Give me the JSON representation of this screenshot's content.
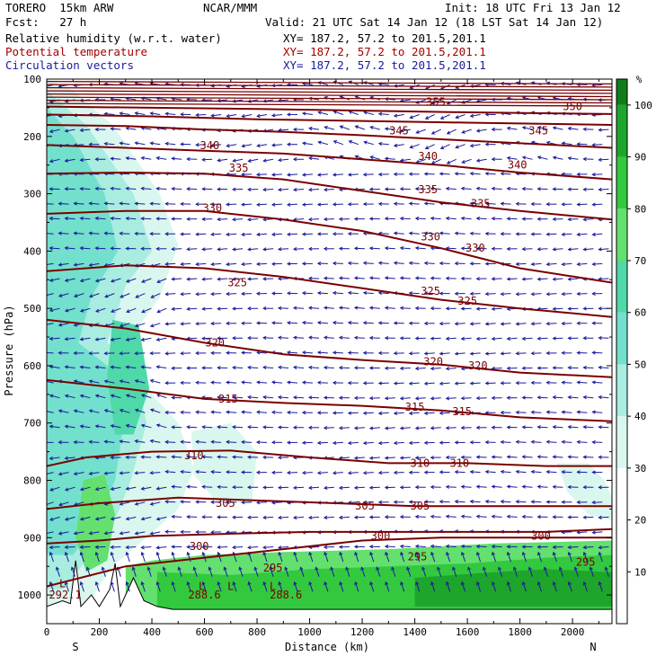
{
  "header": {
    "model": "TORERO  15km ARW",
    "center": "NCAR/MMM",
    "init": "Init: 18 UTC Fri 13 Jan 12",
    "fcst": "Fcst:   27 h",
    "valid": "Valid: 21 UTC Sat 14 Jan 12 (18 LST Sat 14 Jan 12)",
    "fields": [
      {
        "name": "Relative humidity (w.r.t. water)",
        "xy": "XY= 187.2, 57.2 to 201.5,201.1"
      },
      {
        "name": "Potential temperature",
        "xy": "XY= 187.2, 57.2 to 201.5,201.1"
      },
      {
        "name": "Circulation vectors",
        "xy": "XY= 187.2, 57.2 to 201.5,201.1"
      }
    ]
  },
  "colors": {
    "theta": "#7a0000",
    "vectors": "#1a1a9c",
    "rh_scale": [
      "#ffffff",
      "#ffffff",
      "#ffffff",
      "#d9f7ee",
      "#a8ede0",
      "#72e0cc",
      "#4fd9a8",
      "#63e06e",
      "#33c93f",
      "#1ea52c",
      "#107c1a"
    ]
  },
  "chart_data": {
    "type": "cross-section",
    "xlabel": "Distance (km)",
    "ylabel": "Pressure (hPa)",
    "xlim": [
      0,
      2150
    ],
    "ylim": [
      1050,
      100
    ],
    "x_ticks": [
      "0",
      "200",
      "400",
      "600",
      "800",
      "1000",
      "1200",
      "1400",
      "1600",
      "1800",
      "2000"
    ],
    "y_ticks": [
      "100",
      "200",
      "300",
      "400",
      "500",
      "600",
      "700",
      "800",
      "900",
      "1000"
    ],
    "x_end_labels": {
      "left": "S",
      "right": "N"
    },
    "colorbar": {
      "unit": "%",
      "ticks": [
        "10",
        "20",
        "30",
        "40",
        "50",
        "60",
        "70",
        "80",
        "90",
        "100"
      ],
      "range": [
        0,
        105
      ]
    },
    "theta_contours": [
      {
        "label": "295",
        "points": [
          [
            0,
            985
          ],
          [
            300,
            950
          ],
          [
            600,
            935
          ],
          [
            900,
            920
          ],
          [
            1200,
            905
          ],
          [
            1500,
            900
          ],
          [
            1800,
            900
          ],
          [
            2150,
            900
          ]
        ]
      },
      {
        "label": "300",
        "points": [
          [
            0,
            910
          ],
          [
            200,
            905
          ],
          [
            400,
            897
          ],
          [
            700,
            893
          ],
          [
            1000,
            890
          ],
          [
            1300,
            890
          ],
          [
            1600,
            890
          ],
          [
            1900,
            890
          ],
          [
            2150,
            885
          ]
        ]
      },
      {
        "label": "305",
        "points": [
          [
            0,
            850
          ],
          [
            200,
            840
          ],
          [
            500,
            830
          ],
          [
            800,
            835
          ],
          [
            1100,
            840
          ],
          [
            1400,
            845
          ],
          [
            1700,
            845
          ],
          [
            2000,
            845
          ],
          [
            2150,
            845
          ]
        ]
      },
      {
        "label": "310",
        "points": [
          [
            0,
            775
          ],
          [
            150,
            760
          ],
          [
            400,
            750
          ],
          [
            700,
            748
          ],
          [
            1000,
            760
          ],
          [
            1300,
            770
          ],
          [
            1600,
            770
          ],
          [
            1900,
            775
          ],
          [
            2150,
            775
          ]
        ]
      },
      {
        "label": "315",
        "points": [
          [
            0,
            625
          ],
          [
            300,
            640
          ],
          [
            600,
            658
          ],
          [
            900,
            665
          ],
          [
            1200,
            670
          ],
          [
            1500,
            678
          ],
          [
            1800,
            690
          ],
          [
            2150,
            697
          ]
        ]
      },
      {
        "label": "320",
        "points": [
          [
            0,
            520
          ],
          [
            300,
            535
          ],
          [
            600,
            560
          ],
          [
            900,
            580
          ],
          [
            1200,
            590
          ],
          [
            1500,
            598
          ],
          [
            1800,
            612
          ],
          [
            2150,
            620
          ]
        ]
      },
      {
        "label": "325",
        "points": [
          [
            0,
            435
          ],
          [
            300,
            425
          ],
          [
            600,
            430
          ],
          [
            900,
            445
          ],
          [
            1200,
            465
          ],
          [
            1500,
            485
          ],
          [
            1800,
            500
          ],
          [
            2150,
            515
          ]
        ]
      },
      {
        "label": "330",
        "points": [
          [
            0,
            335
          ],
          [
            300,
            330
          ],
          [
            600,
            330
          ],
          [
            900,
            345
          ],
          [
            1200,
            365
          ],
          [
            1500,
            395
          ],
          [
            1800,
            430
          ],
          [
            2150,
            455
          ]
        ]
      },
      {
        "label": "335",
        "points": [
          [
            0,
            265
          ],
          [
            300,
            263
          ],
          [
            600,
            265
          ],
          [
            900,
            275
          ],
          [
            1200,
            295
          ],
          [
            1500,
            315
          ],
          [
            1800,
            330
          ],
          [
            2150,
            345
          ]
        ]
      },
      {
        "label": "340",
        "points": [
          [
            0,
            215
          ],
          [
            300,
            220
          ],
          [
            600,
            225
          ],
          [
            900,
            230
          ],
          [
            1200,
            240
          ],
          [
            1500,
            250
          ],
          [
            1800,
            263
          ],
          [
            2150,
            275
          ]
        ]
      },
      {
        "label": "345",
        "points": [
          [
            0,
            180
          ],
          [
            300,
            182
          ],
          [
            600,
            188
          ],
          [
            900,
            192
          ],
          [
            1200,
            198
          ],
          [
            1500,
            205
          ],
          [
            1800,
            212
          ],
          [
            2150,
            220
          ]
        ]
      },
      {
        "label": "350",
        "points": [
          [
            0,
            162
          ],
          [
            400,
            165
          ],
          [
            800,
            170
          ],
          [
            1200,
            173
          ],
          [
            1600,
            176
          ],
          [
            2150,
            180
          ]
        ]
      },
      {
        "label": "355",
        "points": [
          [
            0,
            148
          ],
          [
            400,
            150
          ],
          [
            800,
            152
          ],
          [
            1200,
            155
          ],
          [
            1600,
            158
          ],
          [
            2150,
            161
          ]
        ]
      }
    ],
    "theta_labels": [
      {
        "text": "355",
        "x": 1480,
        "p": 140
      },
      {
        "text": "350",
        "x": 2000,
        "p": 148
      },
      {
        "text": "340",
        "x": 620,
        "p": 216
      },
      {
        "text": "345",
        "x": 1340,
        "p": 190
      },
      {
        "text": "345",
        "x": 1870,
        "p": 190
      },
      {
        "text": "335",
        "x": 730,
        "p": 255
      },
      {
        "text": "340",
        "x": 1450,
        "p": 235
      },
      {
        "text": "340",
        "x": 1790,
        "p": 250
      },
      {
        "text": "330",
        "x": 630,
        "p": 325
      },
      {
        "text": "335",
        "x": 1450,
        "p": 293
      },
      {
        "text": "335",
        "x": 1650,
        "p": 317
      },
      {
        "text": "330",
        "x": 1460,
        "p": 375
      },
      {
        "text": "330",
        "x": 1630,
        "p": 395
      },
      {
        "text": "325",
        "x": 725,
        "p": 455
      },
      {
        "text": "325",
        "x": 1460,
        "p": 470
      },
      {
        "text": "325",
        "x": 1600,
        "p": 487
      },
      {
        "text": "320",
        "x": 640,
        "p": 560
      },
      {
        "text": "320",
        "x": 1470,
        "p": 593
      },
      {
        "text": "320",
        "x": 1640,
        "p": 600
      },
      {
        "text": "315",
        "x": 690,
        "p": 658
      },
      {
        "text": "315",
        "x": 1400,
        "p": 672
      },
      {
        "text": "315",
        "x": 1580,
        "p": 680
      },
      {
        "text": "310",
        "x": 560,
        "p": 757
      },
      {
        "text": "310",
        "x": 1420,
        "p": 770
      },
      {
        "text": "310",
        "x": 1570,
        "p": 770
      },
      {
        "text": "305",
        "x": 680,
        "p": 840
      },
      {
        "text": "305",
        "x": 1210,
        "p": 845
      },
      {
        "text": "305",
        "x": 1420,
        "p": 845
      },
      {
        "text": "300",
        "x": 580,
        "p": 915
      },
      {
        "text": "300",
        "x": 1270,
        "p": 897
      },
      {
        "text": "300",
        "x": 1880,
        "p": 897
      },
      {
        "text": "295",
        "x": 860,
        "p": 953
      },
      {
        "text": "295",
        "x": 1410,
        "p": 933
      },
      {
        "text": "295",
        "x": 2050,
        "p": 943
      },
      {
        "text": "292.1",
        "x": 70,
        "p": 1000
      },
      {
        "text": "288.6",
        "x": 600,
        "p": 1000
      },
      {
        "text": "288.6",
        "x": 910,
        "p": 1000
      }
    ],
    "low_markers": [
      {
        "text": "L",
        "x": 60,
        "p": 980
      },
      {
        "text": "L",
        "x": 590,
        "p": 985
      },
      {
        "text": "L",
        "x": 700,
        "p": 985
      },
      {
        "text": "L",
        "x": 860,
        "p": 985
      }
    ],
    "rh_regions": [
      {
        "rh": 35,
        "points": [
          [
            0,
            100
          ],
          [
            100,
            120
          ],
          [
            250,
            180
          ],
          [
            430,
            300
          ],
          [
            500,
            390
          ],
          [
            430,
            480
          ],
          [
            320,
            550
          ],
          [
            400,
            650
          ],
          [
            500,
            700
          ],
          [
            560,
            780
          ],
          [
            500,
            850
          ],
          [
            380,
            900
          ],
          [
            250,
            950
          ],
          [
            150,
            1020
          ],
          [
            0,
            1020
          ]
        ]
      },
      {
        "rh": 45,
        "points": [
          [
            0,
            120
          ],
          [
            150,
            180
          ],
          [
            330,
            300
          ],
          [
            400,
            400
          ],
          [
            300,
            460
          ],
          [
            230,
            560
          ],
          [
            330,
            600
          ],
          [
            380,
            700
          ],
          [
            320,
            800
          ],
          [
            250,
            880
          ],
          [
            150,
            940
          ],
          [
            60,
            990
          ],
          [
            0,
            990
          ]
        ]
      },
      {
        "rh": 55,
        "points": [
          [
            0,
            150
          ],
          [
            100,
            200
          ],
          [
            220,
            300
          ],
          [
            270,
            400
          ],
          [
            170,
            480
          ],
          [
            120,
            560
          ],
          [
            230,
            600
          ],
          [
            300,
            680
          ],
          [
            260,
            800
          ],
          [
            180,
            880
          ],
          [
            100,
            930
          ],
          [
            0,
            930
          ]
        ]
      },
      {
        "rh": 35,
        "points": [
          [
            550,
            715
          ],
          [
            700,
            700
          ],
          [
            800,
            750
          ],
          [
            780,
            840
          ],
          [
            650,
            840
          ],
          [
            560,
            790
          ]
        ]
      },
      {
        "rh": 35,
        "points": [
          [
            1940,
            770
          ],
          [
            2060,
            770
          ],
          [
            2120,
            800
          ],
          [
            2150,
            830
          ],
          [
            2150,
            870
          ],
          [
            2060,
            860
          ],
          [
            1980,
            820
          ]
        ]
      },
      {
        "rh": 65,
        "points": [
          [
            250,
            520
          ],
          [
            350,
            530
          ],
          [
            390,
            640
          ],
          [
            330,
            720
          ],
          [
            260,
            720
          ],
          [
            230,
            620
          ]
        ]
      },
      {
        "rh": 70,
        "points": [
          [
            140,
            800
          ],
          [
            220,
            790
          ],
          [
            260,
            860
          ],
          [
            230,
            940
          ],
          [
            150,
            960
          ],
          [
            110,
            900
          ]
        ]
      },
      {
        "rh": 70,
        "points": [
          [
            300,
            950
          ],
          [
            400,
            940
          ],
          [
            600,
            930
          ],
          [
            900,
            925
          ],
          [
            1300,
            920
          ],
          [
            1700,
            910
          ],
          [
            2150,
            905
          ],
          [
            2150,
            1025
          ],
          [
            300,
            1025
          ]
        ]
      },
      {
        "rh": 85,
        "points": [
          [
            420,
            960
          ],
          [
            700,
            965
          ],
          [
            1000,
            955
          ],
          [
            1300,
            950
          ],
          [
            1600,
            945
          ],
          [
            1900,
            935
          ],
          [
            2150,
            930
          ],
          [
            2150,
            1025
          ],
          [
            420,
            1025
          ]
        ]
      },
      {
        "rh": 95,
        "points": [
          [
            1400,
            970
          ],
          [
            1700,
            960
          ],
          [
            1900,
            955
          ],
          [
            2150,
            960
          ],
          [
            2150,
            1020
          ],
          [
            1400,
            1020
          ]
        ]
      }
    ],
    "terrain": [
      [
        0,
        1020
      ],
      [
        60,
        1010
      ],
      [
        90,
        1015
      ],
      [
        110,
        940
      ],
      [
        130,
        1020
      ],
      [
        170,
        1000
      ],
      [
        200,
        1020
      ],
      [
        240,
        990
      ],
      [
        260,
        945
      ],
      [
        280,
        1020
      ],
      [
        330,
        970
      ],
      [
        370,
        1010
      ],
      [
        420,
        1020
      ],
      [
        480,
        1025
      ],
      [
        2150,
        1025
      ]
    ],
    "grid": false,
    "legend": "right colorbar"
  }
}
